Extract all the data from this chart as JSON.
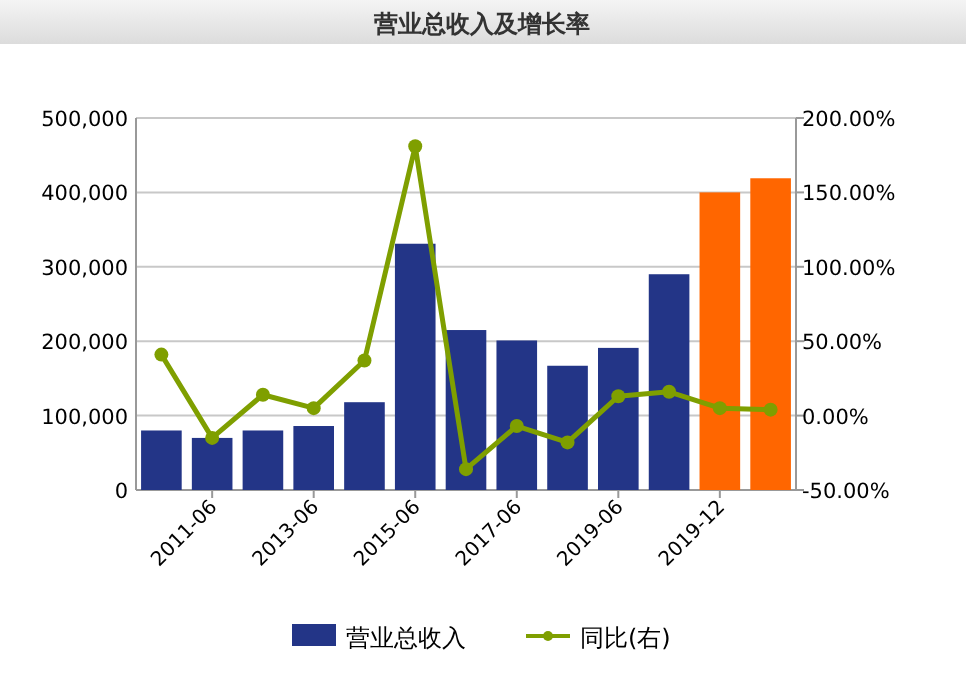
{
  "chart_data": {
    "type": "bar",
    "title": "营业总收入及增长率",
    "categories": [
      null,
      "2011-06",
      null,
      "2013-06",
      null,
      "2015-06",
      null,
      "2017-06",
      null,
      "2019-06",
      null,
      "2019-12",
      null
    ],
    "series": [
      {
        "name": "营业总收入",
        "color": "#233587",
        "colors": [
          "#233587",
          "#233587",
          "#233587",
          "#233587",
          "#233587",
          "#233587",
          "#233587",
          "#233587",
          "#233587",
          "#233587",
          "#233587",
          "#ff6600",
          "#ff6600"
        ],
        "values": [
          80000,
          70000,
          80000,
          86000,
          118000,
          331000,
          215000,
          201000,
          167000,
          191000,
          290000,
          400000,
          419000
        ]
      },
      {
        "name": "同比(右)",
        "type": "line",
        "axis": "y2",
        "color": "#7f9f00",
        "marker": "circle",
        "values": [
          41,
          -15,
          14,
          5,
          37,
          181,
          -36,
          -7,
          -18,
          13,
          16,
          5,
          4
        ]
      }
    ],
    "ylim": [
      0,
      500000
    ],
    "yticks": [
      {
        "value": 0,
        "label": "0"
      },
      {
        "value": 100000,
        "label": "100,000"
      },
      {
        "value": 200000,
        "label": "200,000"
      },
      {
        "value": 300000,
        "label": "300,000"
      },
      {
        "value": 400000,
        "label": "400,000"
      },
      {
        "value": 500000,
        "label": "500,000"
      }
    ],
    "y2lim": [
      -50,
      200
    ],
    "y2ticks": [
      {
        "value": -50,
        "label": "-50.00%"
      },
      {
        "value": 0,
        "label": "0.00%"
      },
      {
        "value": 50,
        "label": "50.00%"
      },
      {
        "value": 100,
        "label": "100.00%"
      },
      {
        "value": 150,
        "label": "150.00%"
      },
      {
        "value": 200,
        "label": "200.00%"
      }
    ],
    "grid": "y",
    "legend": "bottom"
  }
}
